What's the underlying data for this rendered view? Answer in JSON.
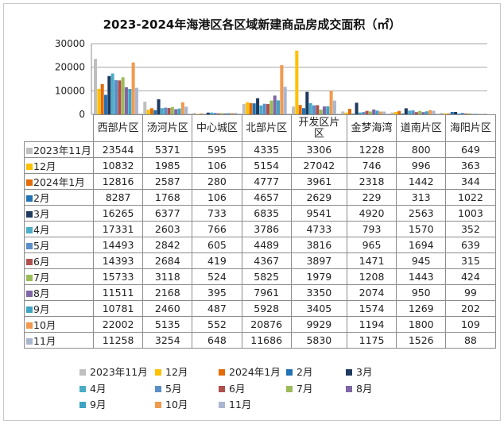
{
  "chart_data": {
    "type": "bar",
    "title": "2023-2024年海港区各区域新建商品房成交面积（㎡）",
    "xlabel": "",
    "ylabel": "",
    "ylim": [
      0,
      30000
    ],
    "yticks": [
      "0",
      "10000",
      "20000",
      "30000"
    ],
    "grid": true,
    "legend_placement": "bottom",
    "categories": [
      "西部片区",
      "汤河片区",
      "中心城区",
      "北部片区",
      "开发区片区",
      "金梦海湾",
      "道南片区",
      "海阳片区"
    ],
    "series": [
      {
        "name": "2023年11月",
        "color": "#bfbfbf",
        "values": [
          23544,
          5371,
          595,
          4335,
          3306,
          1228,
          800,
          649
        ]
      },
      {
        "name": "12月",
        "color": "#ffc000",
        "values": [
          10832,
          1985,
          106,
          5154,
          27042,
          746,
          996,
          363
        ]
      },
      {
        "name": "2024年1月",
        "color": "#e36c0a",
        "values": [
          12816,
          2587,
          280,
          4777,
          3961,
          2318,
          1442,
          344
        ]
      },
      {
        "name": "2月",
        "color": "#2272b4",
        "values": [
          8287,
          1768,
          106,
          4657,
          2629,
          229,
          313,
          1022
        ]
      },
      {
        "name": "3月",
        "color": "#1f3a5f",
        "values": [
          16265,
          6377,
          733,
          6835,
          9541,
          4920,
          2563,
          1003
        ]
      },
      {
        "name": "4月",
        "color": "#4bacc6",
        "values": [
          17331,
          2603,
          766,
          3786,
          4733,
          793,
          1570,
          352
        ]
      },
      {
        "name": "5月",
        "color": "#5b8fc9",
        "values": [
          14493,
          2842,
          605,
          4489,
          3816,
          965,
          1694,
          639
        ]
      },
      {
        "name": "6月",
        "color": "#b0504d",
        "values": [
          14393,
          2684,
          419,
          4367,
          3897,
          1471,
          945,
          315
        ]
      },
      {
        "name": "7月",
        "color": "#9bbb59",
        "values": [
          15733,
          3118,
          524,
          5825,
          1979,
          1208,
          1443,
          424
        ]
      },
      {
        "name": "8月",
        "color": "#7e66a6",
        "values": [
          11511,
          2168,
          395,
          7961,
          3350,
          2074,
          950,
          99
        ]
      },
      {
        "name": "9月",
        "color": "#3fa3c4",
        "values": [
          10781,
          2460,
          487,
          5928,
          3405,
          1574,
          1269,
          202
        ]
      },
      {
        "name": "10月",
        "color": "#f09a4f",
        "values": [
          22002,
          5135,
          552,
          20876,
          9929,
          1194,
          1800,
          109
        ]
      },
      {
        "name": "11月",
        "color": "#aab6cf",
        "values": [
          11258,
          3254,
          648,
          11686,
          5830,
          1175,
          1526,
          88
        ]
      }
    ]
  }
}
